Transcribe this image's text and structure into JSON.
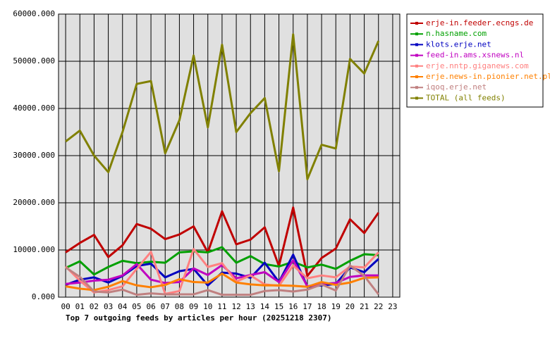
{
  "chart_data": {
    "type": "line",
    "title": "Top 7 outgoing feeds by articles per hour (20251218 2307)",
    "categories": [
      "00",
      "01",
      "02",
      "03",
      "04",
      "05",
      "06",
      "07",
      "08",
      "09",
      "10",
      "11",
      "12",
      "13",
      "14",
      "15",
      "16",
      "17",
      "18",
      "19",
      "20",
      "21",
      "22",
      "23"
    ],
    "ylim": [
      0,
      60000
    ],
    "yticks": [
      {
        "value": 0,
        "label": "0.000"
      },
      {
        "value": 10000,
        "label": "10000.000"
      },
      {
        "value": 20000,
        "label": "20000.000"
      },
      {
        "value": 30000,
        "label": "30000.000"
      },
      {
        "value": 40000,
        "label": "40000.000"
      },
      {
        "value": 50000,
        "label": "50000.000"
      },
      {
        "value": 60000,
        "label": "60000.000"
      }
    ],
    "grid": true,
    "series": [
      {
        "name": "erje-in.feeder.ecngs.de",
        "color": "#c00000",
        "values": [
          9500,
          11500,
          13200,
          8500,
          11000,
          15500,
          14500,
          12300,
          13300,
          15000,
          9500,
          18200,
          11200,
          12200,
          14800,
          6600,
          19000,
          4500,
          8300,
          10300,
          16500,
          13600,
          17900,
          null
        ]
      },
      {
        "name": "n.hasname.com",
        "color": "#00a000",
        "values": [
          6200,
          7600,
          4800,
          6400,
          7700,
          7200,
          7500,
          7300,
          9500,
          9700,
          9500,
          10600,
          7300,
          8700,
          7000,
          6500,
          7500,
          6300,
          6900,
          6000,
          7700,
          9100,
          8900,
          null
        ]
      },
      {
        "name": "klots.erje.net",
        "color": "#0000c0",
        "values": [
          2600,
          3700,
          4200,
          3100,
          4500,
          6600,
          7100,
          4200,
          5500,
          6000,
          2500,
          5200,
          5000,
          4100,
          7300,
          3200,
          9000,
          2200,
          2500,
          2800,
          6300,
          5300,
          8100,
          null
        ]
      },
      {
        "name": "feed-in.ams.xsnews.nl",
        "color": "#c000c0",
        "values": [
          2800,
          3100,
          3500,
          3700,
          4600,
          7000,
          3700,
          3000,
          3200,
          6100,
          4700,
          6800,
          4000,
          4700,
          5300,
          3200,
          7800,
          2300,
          2800,
          3000,
          4300,
          4600,
          4600,
          null
        ]
      },
      {
        "name": "erje.nntp.giganews.com",
        "color": "#ff8080",
        "values": [
          6500,
          3500,
          1000,
          1500,
          2300,
          6000,
          9600,
          700,
          1300,
          10200,
          6400,
          7200,
          3300,
          4600,
          2700,
          2400,
          6700,
          4000,
          4600,
          4200,
          6500,
          6300,
          9500,
          null
        ]
      },
      {
        "name": "erje.news-in.pionier.net.pl",
        "color": "#ff8000",
        "values": [
          2300,
          1800,
          1500,
          2200,
          3400,
          2500,
          2100,
          2600,
          3800,
          3200,
          3100,
          5000,
          3100,
          2700,
          2500,
          2500,
          2400,
          2200,
          3200,
          2600,
          3100,
          4100,
          4200,
          null
        ]
      },
      {
        "name": "iqoq.erje.net",
        "color": "#c08080",
        "values": [
          6300,
          4300,
          1200,
          1000,
          1600,
          500,
          800,
          600,
          600,
          600,
          1500,
          500,
          500,
          500,
          1300,
          1500,
          1200,
          1600,
          2700,
          1400,
          6700,
          4500,
          600,
          null
        ]
      },
      {
        "name": "TOTAL (all feeds)",
        "color": "#808000",
        "values": [
          33000,
          35300,
          30000,
          26500,
          35000,
          45200,
          45800,
          30500,
          37500,
          51200,
          36000,
          53500,
          35000,
          39000,
          42200,
          26700,
          55700,
          25000,
          32300,
          31500,
          50500,
          47400,
          54300,
          null
        ]
      }
    ]
  }
}
